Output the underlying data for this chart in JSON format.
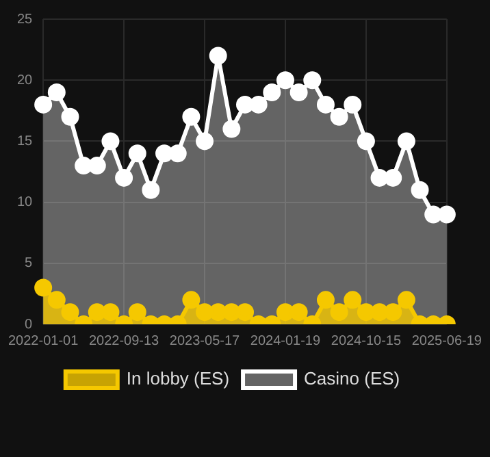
{
  "chart_data": {
    "type": "area",
    "categories": [
      "2022-01-01",
      null,
      null,
      null,
      null,
      null,
      "2022-09-13",
      null,
      null,
      null,
      null,
      null,
      "2023-05-17",
      null,
      null,
      null,
      null,
      null,
      "2024-01-19",
      null,
      null,
      null,
      null,
      null,
      "2024-10-15",
      null,
      null,
      null,
      null,
      null,
      "2025-06-19"
    ],
    "series": [
      {
        "name": "In lobby (ES)",
        "color": "#f5c800",
        "values": [
          3,
          2,
          1,
          0,
          1,
          1,
          0,
          1,
          0,
          0,
          0,
          2,
          1,
          1,
          1,
          1,
          0,
          0,
          1,
          1,
          0,
          2,
          1,
          2,
          1,
          1,
          1,
          2,
          0,
          0,
          0
        ]
      },
      {
        "name": "Casino (ES)",
        "color": "#ffffff",
        "values": [
          18,
          19,
          17,
          13,
          13,
          15,
          12,
          14,
          11,
          14,
          14,
          17,
          15,
          22,
          16,
          18,
          18,
          19,
          20,
          19,
          20,
          18,
          17,
          18,
          15,
          12,
          12,
          15,
          11,
          9,
          9
        ]
      }
    ],
    "ylim": [
      0,
      25
    ],
    "yticks": [
      0,
      5,
      10,
      15,
      20,
      25
    ],
    "grid": true,
    "legend": "bottom",
    "marker": "circle"
  }
}
